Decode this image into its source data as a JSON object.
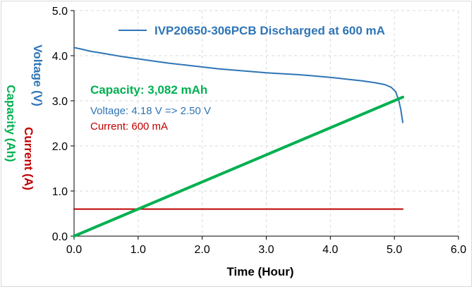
{
  "chart_data": {
    "type": "line",
    "title": "",
    "xlabel": "Time (Hour)",
    "ylabels": [
      {
        "text": "Voltage (V)",
        "color": "#2e75b6"
      },
      {
        "text": "Current (A)",
        "color": "#c00000"
      },
      {
        "text": "Capacity (Ah)",
        "color": "#00b050"
      }
    ],
    "xlim": [
      0,
      6
    ],
    "ylim": [
      0,
      5
    ],
    "x_ticks": [
      "0.0",
      "1.0",
      "2.0",
      "3.0",
      "4.0",
      "5.0",
      "6.0"
    ],
    "y_ticks": [
      "0.0",
      "1.0",
      "2.0",
      "3.0",
      "4.0",
      "5.0"
    ],
    "grid": {
      "horizontal": true,
      "vertical": true,
      "style": "dashed"
    },
    "legend": {
      "position": "top",
      "entries": [
        {
          "name": "IVP20650-306PCB Discharged at 600 mA",
          "color": "#2e75b6"
        }
      ]
    },
    "annotations": [
      {
        "text": "Capacity: 3,082 mAh",
        "color": "#00b050",
        "emphasis": "bold"
      },
      {
        "text": "Voltage: 4.18 V => 2.50 V",
        "color": "#2e75b6",
        "emphasis": "normal"
      },
      {
        "text": "Current: 600 mA",
        "color": "#c00000",
        "emphasis": "normal"
      }
    ],
    "series": [
      {
        "name": "IVP20650-306PCB Discharged at 600 mA",
        "color": "#2e75b6",
        "x": [
          0,
          0.1,
          0.25,
          0.5,
          0.75,
          1.0,
          1.25,
          1.5,
          1.75,
          2.0,
          2.25,
          2.5,
          2.75,
          3.0,
          3.25,
          3.5,
          3.75,
          4.0,
          4.25,
          4.5,
          4.7,
          4.85,
          4.95,
          5.02,
          5.07,
          5.1,
          5.13
        ],
        "y": [
          4.18,
          4.15,
          4.1,
          4.04,
          3.98,
          3.93,
          3.88,
          3.83,
          3.79,
          3.75,
          3.71,
          3.68,
          3.65,
          3.62,
          3.6,
          3.58,
          3.55,
          3.52,
          3.48,
          3.44,
          3.4,
          3.36,
          3.3,
          3.2,
          3.0,
          2.8,
          2.52
        ]
      },
      {
        "name": "Current",
        "color": "#c00000",
        "x": [
          0,
          5.13
        ],
        "y": [
          0.6,
          0.6
        ]
      },
      {
        "name": "Capacity",
        "color": "#00b050",
        "x": [
          0,
          5.13
        ],
        "y": [
          0,
          3.082
        ]
      }
    ]
  }
}
